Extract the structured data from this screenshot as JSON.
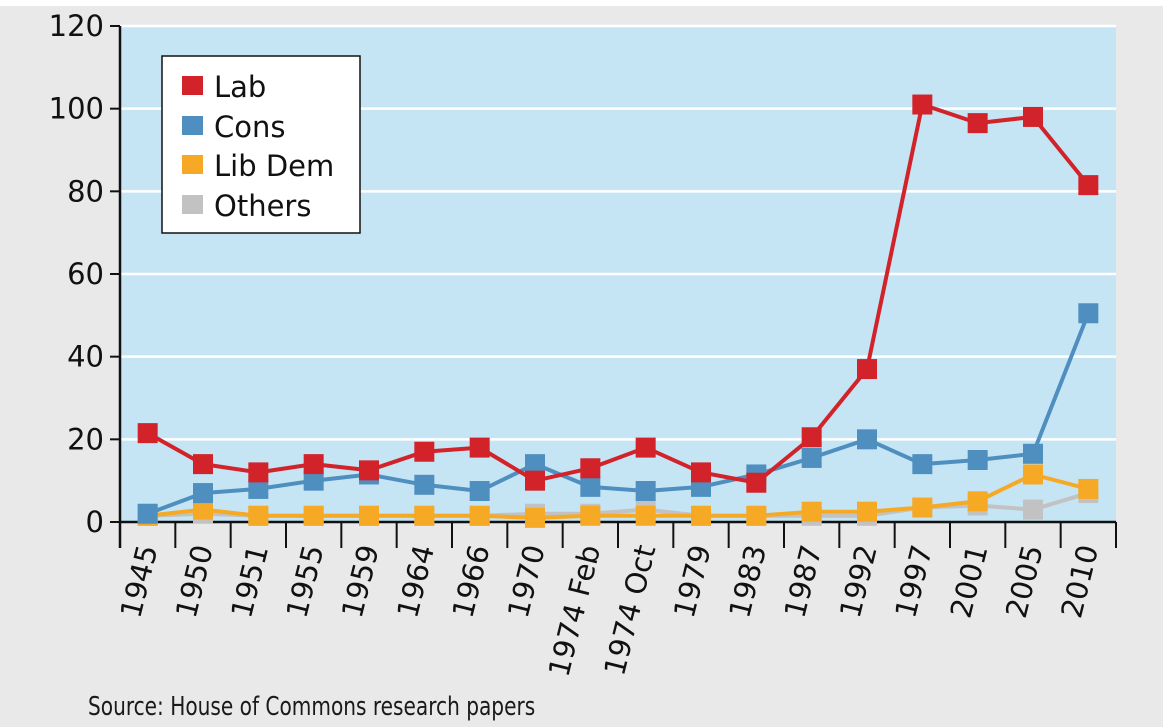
{
  "chart_data": {
    "type": "line",
    "categories": [
      "1945",
      "1950",
      "1951",
      "1955",
      "1959",
      "1964",
      "1966",
      "1970",
      "1974 Feb",
      "1974 Oct",
      "1979",
      "1983",
      "1987",
      "1992",
      "1997",
      "2001",
      "2005",
      "2010"
    ],
    "series": [
      {
        "name": "Lab",
        "color": "#d2232a",
        "values": [
          21.5,
          14,
          12,
          14,
          12.5,
          17,
          18,
          10,
          13,
          18,
          12,
          9.5,
          20.5,
          37,
          101,
          96.5,
          98,
          81.5
        ]
      },
      {
        "name": "Cons",
        "color": "#4f8fc0",
        "values": [
          2,
          7,
          8,
          10,
          11.5,
          9,
          7.5,
          14,
          8.5,
          7.5,
          8.5,
          11.5,
          15.5,
          20,
          14,
          15,
          16.5,
          50.5
        ]
      },
      {
        "name": "Lib Dem",
        "color": "#f6a924",
        "values": [
          1.5,
          3,
          1.5,
          1.5,
          1.5,
          1.5,
          1.5,
          1,
          1.5,
          1.5,
          1.5,
          1.5,
          2.5,
          2.5,
          3.5,
          5,
          11.5,
          8
        ]
      },
      {
        "name": "Others",
        "color": "#c2c2c2",
        "values": [
          1.5,
          2,
          1.5,
          1.5,
          1.5,
          1.5,
          1.5,
          2,
          2,
          3,
          1.5,
          1.5,
          1.5,
          1.5,
          3.5,
          4,
          3,
          7
        ]
      }
    ],
    "yticks": [
      0,
      20,
      40,
      60,
      80,
      100,
      120
    ],
    "ylim": [
      0,
      120
    ],
    "grid": true,
    "legend_position": "top-left",
    "colors": {
      "plot_background": "#c5e5f4",
      "gridline": "#ffffff",
      "axis": "#111111"
    }
  },
  "source": "Source: House of Commons research papers"
}
